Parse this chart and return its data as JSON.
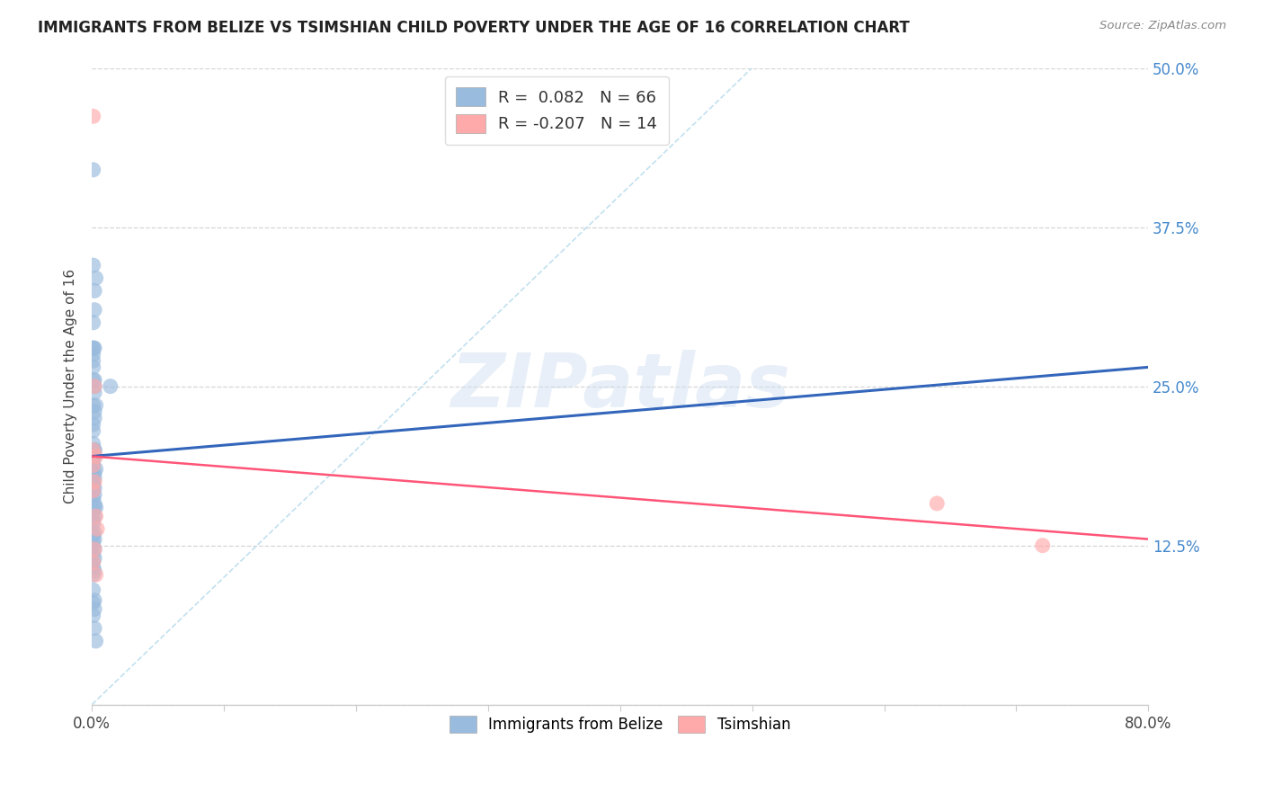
{
  "title": "IMMIGRANTS FROM BELIZE VS TSIMSHIAN CHILD POVERTY UNDER THE AGE OF 16 CORRELATION CHART",
  "source": "Source: ZipAtlas.com",
  "ylabel": "Child Poverty Under the Age of 16",
  "xlim": [
    0.0,
    0.8
  ],
  "ylim": [
    0.0,
    0.5
  ],
  "yticks": [
    0.0,
    0.125,
    0.25,
    0.375,
    0.5
  ],
  "yticklabels_right": [
    "",
    "12.5%",
    "25.0%",
    "37.5%",
    "50.0%"
  ],
  "xtick_positions": [
    0.0,
    0.1,
    0.2,
    0.3,
    0.4,
    0.5,
    0.6,
    0.7,
    0.8
  ],
  "watermark_text": "ZIPatlas",
  "legend_label1": "Immigrants from Belize",
  "legend_label2": "Tsimshian",
  "legend_r1": "R =  0.082   N = 66",
  "legend_r2": "R = -0.207   N = 14",
  "blue_color": "#99BBDD",
  "pink_color": "#FFAAAA",
  "trend_blue_color": "#3366BB",
  "trend_pink_color": "#FF5577",
  "ref_color": "#BBDDEE",
  "blue_scatter_x": [
    0.001,
    0.001,
    0.002,
    0.001,
    0.002,
    0.002,
    0.003,
    0.001,
    0.001,
    0.001,
    0.002,
    0.001,
    0.002,
    0.001,
    0.002,
    0.001,
    0.002,
    0.001,
    0.003,
    0.002,
    0.001,
    0.001,
    0.002,
    0.001,
    0.002,
    0.002,
    0.001,
    0.003,
    0.001,
    0.002,
    0.001,
    0.002,
    0.001,
    0.002,
    0.001,
    0.001,
    0.002,
    0.001,
    0.002,
    0.003,
    0.001,
    0.002,
    0.001,
    0.001,
    0.002,
    0.001,
    0.002,
    0.001,
    0.001,
    0.002,
    0.001,
    0.002,
    0.001,
    0.001,
    0.002,
    0.001,
    0.001,
    0.002,
    0.014,
    0.001,
    0.002,
    0.001,
    0.002,
    0.003,
    0.002,
    0.001
  ],
  "blue_scatter_y": [
    0.42,
    0.27,
    0.28,
    0.3,
    0.31,
    0.325,
    0.335,
    0.345,
    0.275,
    0.28,
    0.255,
    0.265,
    0.25,
    0.255,
    0.245,
    0.235,
    0.23,
    0.22,
    0.235,
    0.225,
    0.205,
    0.215,
    0.2,
    0.195,
    0.2,
    0.195,
    0.19,
    0.185,
    0.188,
    0.182,
    0.18,
    0.178,
    0.175,
    0.17,
    0.172,
    0.168,
    0.165,
    0.162,
    0.158,
    0.155,
    0.152,
    0.148,
    0.145,
    0.142,
    0.135,
    0.133,
    0.13,
    0.128,
    0.125,
    0.122,
    0.118,
    0.115,
    0.112,
    0.108,
    0.105,
    0.102,
    0.08,
    0.075,
    0.25,
    0.09,
    0.082,
    0.07,
    0.06,
    0.05,
    0.155,
    0.28
  ],
  "pink_scatter_x": [
    0.001,
    0.002,
    0.001,
    0.003,
    0.001,
    0.002,
    0.001,
    0.003,
    0.004,
    0.002,
    0.001,
    0.003,
    0.64,
    0.72
  ],
  "pink_scatter_y": [
    0.462,
    0.25,
    0.2,
    0.195,
    0.188,
    0.175,
    0.168,
    0.148,
    0.138,
    0.122,
    0.112,
    0.102,
    0.158,
    0.125
  ],
  "blue_trend": [
    0.0,
    0.8,
    0.195,
    0.265
  ],
  "pink_trend": [
    0.0,
    0.8,
    0.195,
    0.13
  ],
  "ref_line": [
    0.0,
    0.5,
    0.0,
    0.5
  ]
}
